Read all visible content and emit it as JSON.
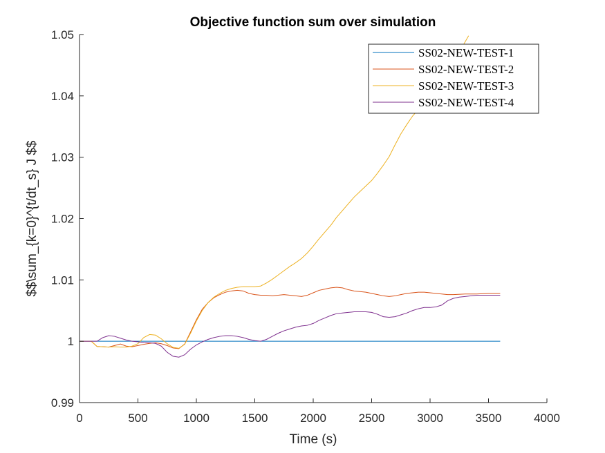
{
  "chart_data": {
    "type": "line",
    "title": "Objective function sum over simulation",
    "xlabel": "Time (s)",
    "ylabel": "$$\\sum_{k=0}^{t/dt_s} J $$",
    "xlim": [
      0,
      4000
    ],
    "ylim": [
      0.99,
      1.05
    ],
    "xticks": [
      0,
      500,
      1000,
      1500,
      2000,
      2500,
      3000,
      3500,
      4000
    ],
    "xtick_labels": [
      "0",
      "500",
      "1000",
      "1500",
      "2000",
      "2500",
      "3000",
      "3500",
      "4000"
    ],
    "yticks": [
      0.99,
      1,
      1.01,
      1.02,
      1.03,
      1.04,
      1.05
    ],
    "ytick_labels": [
      "0.99",
      "1",
      "1.01",
      "1.02",
      "1.03",
      "1.04",
      "1.05"
    ],
    "grid": false,
    "legend_position": "top-right",
    "series": [
      {
        "name": "SS02-NEW-TEST-1",
        "color": "#0072BD",
        "points": [
          [
            0,
            1.0
          ],
          [
            3600,
            1.0
          ]
        ]
      },
      {
        "name": "SS02-NEW-TEST-2",
        "color": "#D95319",
        "points": [
          [
            0,
            1.0
          ],
          [
            100,
            1.0
          ],
          [
            130,
            0.9995
          ],
          [
            150,
            0.99915
          ],
          [
            200,
            0.9991
          ],
          [
            250,
            0.99905
          ],
          [
            300,
            0.9993
          ],
          [
            350,
            0.99955
          ],
          [
            400,
            0.9992
          ],
          [
            450,
            0.9991
          ],
          [
            500,
            0.9993
          ],
          [
            550,
            0.9995
          ],
          [
            600,
            0.99965
          ],
          [
            650,
            0.99975
          ],
          [
            700,
            0.9996
          ],
          [
            750,
            0.9993
          ],
          [
            800,
            0.9989
          ],
          [
            850,
            0.9988
          ],
          [
            900,
            0.99955
          ],
          [
            950,
            1.0015
          ],
          [
            1000,
            1.0035
          ],
          [
            1050,
            1.0052
          ],
          [
            1100,
            1.0063
          ],
          [
            1150,
            1.0071
          ],
          [
            1200,
            1.0076
          ],
          [
            1250,
            1.008
          ],
          [
            1300,
            1.0082
          ],
          [
            1350,
            1.0083
          ],
          [
            1400,
            1.0082
          ],
          [
            1450,
            1.0078
          ],
          [
            1500,
            1.0076
          ],
          [
            1550,
            1.0075
          ],
          [
            1600,
            1.0075
          ],
          [
            1650,
            1.0074
          ],
          [
            1700,
            1.0075
          ],
          [
            1750,
            1.0076
          ],
          [
            1800,
            1.0075
          ],
          [
            1850,
            1.0074
          ],
          [
            1900,
            1.0073
          ],
          [
            1950,
            1.0075
          ],
          [
            2000,
            1.0079
          ],
          [
            2050,
            1.0083
          ],
          [
            2100,
            1.0085
          ],
          [
            2150,
            1.0087
          ],
          [
            2200,
            1.0088
          ],
          [
            2250,
            1.0087
          ],
          [
            2300,
            1.0084
          ],
          [
            2350,
            1.0082
          ],
          [
            2400,
            1.0081
          ],
          [
            2450,
            1.008
          ],
          [
            2500,
            1.0078
          ],
          [
            2550,
            1.0076
          ],
          [
            2600,
            1.0074
          ],
          [
            2650,
            1.0073
          ],
          [
            2700,
            1.0074
          ],
          [
            2750,
            1.0076
          ],
          [
            2800,
            1.0078
          ],
          [
            2850,
            1.0079
          ],
          [
            2900,
            1.008
          ],
          [
            2950,
            1.008
          ],
          [
            3000,
            1.0079
          ],
          [
            3050,
            1.0078
          ],
          [
            3100,
            1.0077
          ],
          [
            3150,
            1.0076
          ],
          [
            3200,
            1.0076
          ],
          [
            3300,
            1.0077
          ],
          [
            3400,
            1.0077
          ],
          [
            3500,
            1.0078
          ],
          [
            3600,
            1.0078
          ]
        ]
      },
      {
        "name": "SS02-NEW-TEST-3",
        "color": "#EDB120",
        "points": [
          [
            0,
            1.0
          ],
          [
            100,
            1.0
          ],
          [
            130,
            0.9995
          ],
          [
            150,
            0.99915
          ],
          [
            200,
            0.9991
          ],
          [
            250,
            0.99905
          ],
          [
            300,
            0.9991
          ],
          [
            350,
            0.99905
          ],
          [
            400,
            0.99905
          ],
          [
            450,
            0.9992
          ],
          [
            500,
            0.9996
          ],
          [
            550,
            1.0006
          ],
          [
            600,
            1.0011
          ],
          [
            650,
            1.001
          ],
          [
            700,
            1.0004
          ],
          [
            750,
            0.9996
          ],
          [
            800,
            0.999
          ],
          [
            850,
            0.99885
          ],
          [
            900,
            0.9995
          ],
          [
            950,
            1.0013
          ],
          [
            1000,
            1.0033
          ],
          [
            1050,
            1.005
          ],
          [
            1100,
            1.0063
          ],
          [
            1150,
            1.0072
          ],
          [
            1200,
            1.0078
          ],
          [
            1250,
            1.0083
          ],
          [
            1300,
            1.0086
          ],
          [
            1350,
            1.0088
          ],
          [
            1400,
            1.0089
          ],
          [
            1450,
            1.0089
          ],
          [
            1500,
            1.0089
          ],
          [
            1550,
            1.009
          ],
          [
            1600,
            1.0095
          ],
          [
            1650,
            1.0101
          ],
          [
            1700,
            1.0108
          ],
          [
            1750,
            1.0115
          ],
          [
            1800,
            1.0122
          ],
          [
            1850,
            1.0128
          ],
          [
            1900,
            1.0135
          ],
          [
            1950,
            1.0144
          ],
          [
            2000,
            1.0155
          ],
          [
            2050,
            1.0167
          ],
          [
            2100,
            1.0178
          ],
          [
            2150,
            1.0189
          ],
          [
            2200,
            1.0202
          ],
          [
            2250,
            1.0213
          ],
          [
            2300,
            1.0224
          ],
          [
            2350,
            1.0235
          ],
          [
            2400,
            1.0244
          ],
          [
            2450,
            1.0253
          ],
          [
            2500,
            1.0262
          ],
          [
            2550,
            1.0274
          ],
          [
            2600,
            1.0287
          ],
          [
            2650,
            1.0301
          ],
          [
            2700,
            1.032
          ],
          [
            2750,
            1.0338
          ],
          [
            2800,
            1.0353
          ],
          [
            2850,
            1.0367
          ],
          [
            2900,
            1.0378
          ],
          [
            2950,
            1.0388
          ],
          [
            3000,
            1.04
          ],
          [
            3050,
            1.0412
          ],
          [
            3100,
            1.0425
          ],
          [
            3150,
            1.044
          ],
          [
            3200,
            1.0456
          ],
          [
            3250,
            1.0472
          ],
          [
            3300,
            1.0488
          ],
          [
            3330,
            1.0498
          ]
        ]
      },
      {
        "name": "SS02-NEW-TEST-4",
        "color": "#7E2F8E",
        "points": [
          [
            0,
            1.0
          ],
          [
            150,
            1.0
          ],
          [
            200,
            1.0006
          ],
          [
            250,
            1.0009
          ],
          [
            300,
            1.0008
          ],
          [
            350,
            1.0005
          ],
          [
            400,
            1.0002
          ],
          [
            450,
            1.0
          ],
          [
            500,
            0.9999
          ],
          [
            550,
            0.9998
          ],
          [
            600,
            0.99975
          ],
          [
            650,
            0.99965
          ],
          [
            700,
            0.9992
          ],
          [
            750,
            0.9982
          ],
          [
            800,
            0.99755
          ],
          [
            850,
            0.9974
          ],
          [
            900,
            0.9978
          ],
          [
            950,
            0.9987
          ],
          [
            1000,
            0.9994
          ],
          [
            1050,
            0.9999
          ],
          [
            1100,
            1.0003
          ],
          [
            1150,
            1.0006
          ],
          [
            1200,
            1.0008
          ],
          [
            1250,
            1.0009
          ],
          [
            1300,
            1.0009
          ],
          [
            1350,
            1.0008
          ],
          [
            1400,
            1.0006
          ],
          [
            1450,
            1.0003
          ],
          [
            1500,
            1.0001
          ],
          [
            1550,
            1.0
          ],
          [
            1600,
            1.0003
          ],
          [
            1650,
            1.0008
          ],
          [
            1700,
            1.0013
          ],
          [
            1750,
            1.0017
          ],
          [
            1800,
            1.002
          ],
          [
            1850,
            1.0023
          ],
          [
            1900,
            1.0025
          ],
          [
            1950,
            1.0026
          ],
          [
            2000,
            1.0029
          ],
          [
            2050,
            1.0034
          ],
          [
            2100,
            1.0038
          ],
          [
            2150,
            1.0042
          ],
          [
            2200,
            1.0045
          ],
          [
            2250,
            1.0046
          ],
          [
            2300,
            1.0047
          ],
          [
            2350,
            1.0048
          ],
          [
            2400,
            1.0048
          ],
          [
            2450,
            1.0048
          ],
          [
            2500,
            1.0047
          ],
          [
            2550,
            1.0044
          ],
          [
            2600,
            1.004
          ],
          [
            2650,
            1.0039
          ],
          [
            2700,
            1.004
          ],
          [
            2750,
            1.0043
          ],
          [
            2800,
            1.0046
          ],
          [
            2850,
            1.005
          ],
          [
            2900,
            1.0053
          ],
          [
            2950,
            1.0055
          ],
          [
            3000,
            1.0055
          ],
          [
            3050,
            1.0056
          ],
          [
            3100,
            1.0059
          ],
          [
            3150,
            1.0066
          ],
          [
            3200,
            1.007
          ],
          [
            3250,
            1.0072
          ],
          [
            3300,
            1.0073
          ],
          [
            3350,
            1.0074
          ],
          [
            3400,
            1.0075
          ],
          [
            3500,
            1.0075
          ],
          [
            3600,
            1.0075
          ]
        ]
      }
    ]
  }
}
